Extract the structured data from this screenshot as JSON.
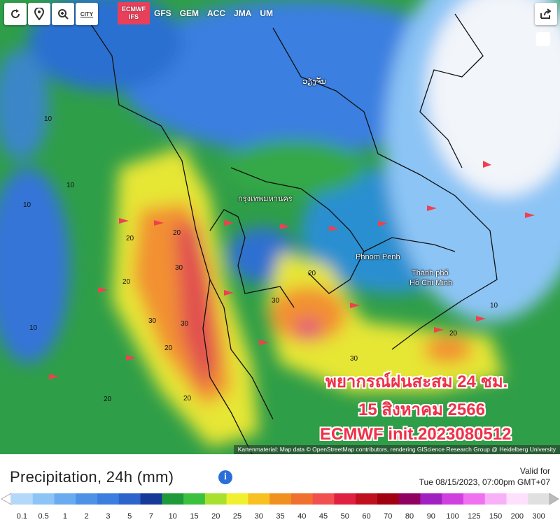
{
  "toolbar": {
    "city": "CITY",
    "models": [
      "ECMWF IFS",
      "GFS",
      "GEM",
      "ACC",
      "JMA",
      "UM"
    ]
  },
  "map": {
    "places": [
      "ວຽງຈັນ",
      "กรุงเทพมหานคร",
      "Phnom Penh",
      "Thành phố",
      "Hồ Chí Minh"
    ],
    "contour_labels": [
      "10",
      "10",
      "10",
      "20",
      "20",
      "30",
      "30",
      "20",
      "30",
      "20",
      "30",
      "20",
      "30",
      "20",
      "20",
      "10",
      "20",
      "10"
    ],
    "overlay": [
      "พยากรณ์ฝนสะสม 24 ชม.",
      "15 สิงหาคม 2566",
      "ECMWF init.2023080512"
    ],
    "attribution": "Kartenmaterial: Map data © OpenStreetMap contributors, rendering GIScience Research Group @ Heidelberg University"
  },
  "legend": {
    "title": "Precipitation, 24h (mm)",
    "valid_label": "Valid for",
    "valid_time": "Tue 08/15/2023, 07:00pm GMT+07",
    "scale": [
      0.1,
      0.5,
      1,
      2,
      3,
      5,
      7,
      10,
      15,
      20,
      25,
      30,
      35,
      40,
      45,
      50,
      60,
      70,
      80,
      90,
      100,
      125,
      150,
      200,
      300
    ],
    "scale_colors": [
      "#b4d8fa",
      "#8cc4f5",
      "#6aaaf0",
      "#4e92e8",
      "#3c7ee0",
      "#2c64cc",
      "#17399a",
      "#1f9a3a",
      "#3cc040",
      "#a8e030",
      "#f0f030",
      "#f8c020",
      "#f09020",
      "#f07030",
      "#f05050",
      "#e02040",
      "#c01020",
      "#a00010",
      "#900060",
      "#a020c0",
      "#d040e0",
      "#f070f0",
      "#f8b0f8",
      "#fce0fc",
      "#e0e0e0"
    ]
  }
}
